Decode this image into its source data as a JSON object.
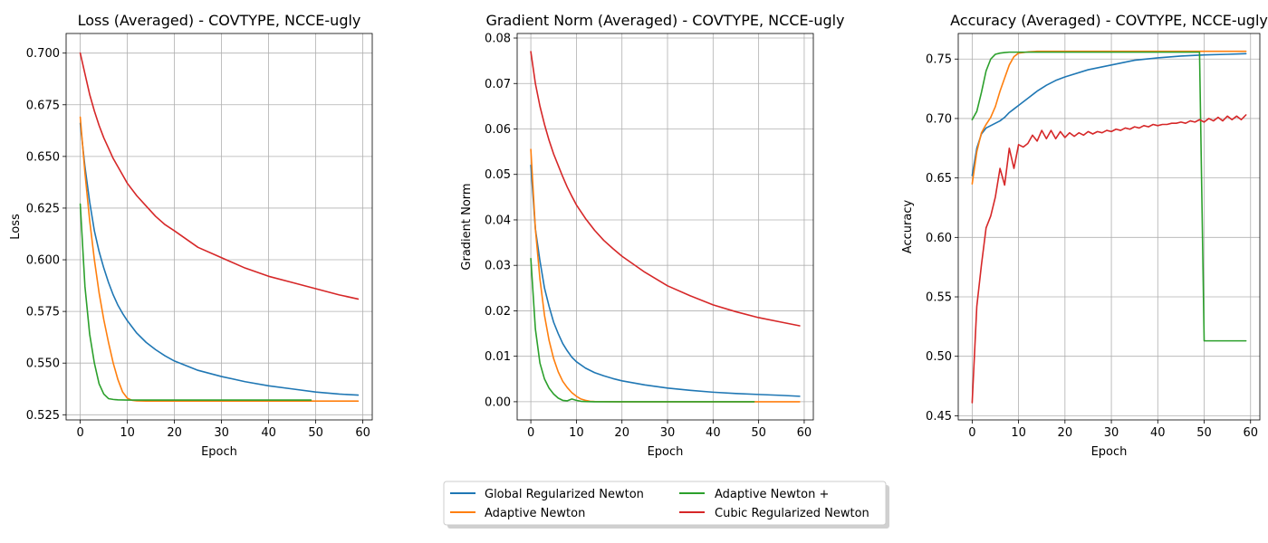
{
  "legend": {
    "placement": "bottom-center",
    "entries": [
      {
        "label": "Global Regularized Newton",
        "color": "#1f77b4"
      },
      {
        "label": "Adaptive Newton",
        "color": "#ff7f0e"
      },
      {
        "label": "Adaptive Newton +",
        "color": "#2ca02c"
      },
      {
        "label": "Cubic Regularized Newton",
        "color": "#d62728"
      }
    ]
  },
  "chart_data": [
    {
      "type": "line",
      "title": "Loss (Averaged) - COVTYPE, NCCE-ugly",
      "xlabel": "Epoch",
      "ylabel": "Loss",
      "xlim": [
        -3,
        62
      ],
      "ylim": [
        0.5225,
        0.7095
      ],
      "xticks": [
        0,
        10,
        20,
        30,
        40,
        50,
        60
      ],
      "yticks": [
        0.525,
        0.55,
        0.575,
        0.6,
        0.625,
        0.65,
        0.675,
        0.7
      ],
      "ytick_labels": [
        "0.525",
        "0.550",
        "0.575",
        "0.600",
        "0.625",
        "0.650",
        "0.675",
        "0.700"
      ],
      "grid": true,
      "series": [
        {
          "name": "Global Regularized Newton",
          "color": "#1f77b4",
          "x": [
            0,
            1,
            2,
            3,
            4,
            5,
            6,
            7,
            8,
            9,
            10,
            12,
            14,
            16,
            18,
            20,
            25,
            30,
            35,
            40,
            45,
            50,
            55,
            59
          ],
          "y": [
            0.666,
            0.645,
            0.628,
            0.614,
            0.604,
            0.596,
            0.589,
            0.583,
            0.578,
            0.574,
            0.5705,
            0.5645,
            0.56,
            0.5565,
            0.5535,
            0.551,
            0.5465,
            0.5435,
            0.541,
            0.539,
            0.5375,
            0.536,
            0.535,
            0.5345
          ]
        },
        {
          "name": "Adaptive Newton",
          "color": "#ff7f0e",
          "x": [
            0,
            1,
            2,
            3,
            4,
            5,
            6,
            7,
            8,
            9,
            10,
            11,
            12,
            14,
            20,
            30,
            40,
            50,
            59
          ],
          "y": [
            0.669,
            0.642,
            0.619,
            0.6,
            0.584,
            0.571,
            0.56,
            0.55,
            0.542,
            0.536,
            0.533,
            0.532,
            0.5317,
            0.5316,
            0.5316,
            0.5316,
            0.5316,
            0.5316,
            0.5316
          ]
        },
        {
          "name": "Adaptive Newton +",
          "color": "#2ca02c",
          "x": [
            0,
            1,
            2,
            3,
            4,
            5,
            6,
            7,
            8,
            10,
            15,
            20,
            30,
            40,
            49
          ],
          "y": [
            0.627,
            0.587,
            0.564,
            0.55,
            0.54,
            0.535,
            0.5328,
            0.5324,
            0.5322,
            0.5321,
            0.5321,
            0.5321,
            0.5321,
            0.5321,
            0.5321
          ]
        },
        {
          "name": "Cubic Regularized Newton",
          "color": "#d62728",
          "x": [
            0,
            1,
            2,
            3,
            4,
            5,
            6,
            7,
            8,
            9,
            10,
            12,
            14,
            16,
            18,
            20,
            25,
            30,
            35,
            40,
            45,
            50,
            55,
            59
          ],
          "y": [
            0.7,
            0.69,
            0.68,
            0.672,
            0.665,
            0.659,
            0.654,
            0.649,
            0.645,
            0.641,
            0.637,
            0.631,
            0.626,
            0.621,
            0.617,
            0.614,
            0.606,
            0.601,
            0.596,
            0.592,
            0.589,
            0.586,
            0.583,
            0.581
          ]
        }
      ]
    },
    {
      "type": "line",
      "title": "Gradient Norm (Averaged) - COVTYPE, NCCE-ugly",
      "xlabel": "Epoch",
      "ylabel": "Gradient Norm",
      "xlim": [
        -3,
        62
      ],
      "ylim": [
        -0.004,
        0.081
      ],
      "xticks": [
        0,
        10,
        20,
        30,
        40,
        50,
        60
      ],
      "yticks": [
        0,
        0.01,
        0.02,
        0.03,
        0.04,
        0.05,
        0.06,
        0.07,
        0.08
      ],
      "ytick_labels": [
        "0.00",
        "0.01",
        "0.02",
        "0.03",
        "0.04",
        "0.05",
        "0.06",
        "0.07",
        "0.08"
      ],
      "grid": true,
      "series": [
        {
          "name": "Global Regularized Newton",
          "color": "#1f77b4",
          "x": [
            0,
            1,
            2,
            3,
            4,
            5,
            6,
            7,
            8,
            9,
            10,
            12,
            14,
            16,
            18,
            20,
            25,
            30,
            35,
            40,
            45,
            50,
            55,
            59
          ],
          "y": [
            0.052,
            0.038,
            0.031,
            0.025,
            0.021,
            0.0175,
            0.015,
            0.0128,
            0.0112,
            0.0098,
            0.0088,
            0.0074,
            0.0064,
            0.0057,
            0.0051,
            0.0046,
            0.0037,
            0.003,
            0.0025,
            0.0021,
            0.0018,
            0.0016,
            0.0014,
            0.0012
          ]
        },
        {
          "name": "Adaptive Newton",
          "color": "#ff7f0e",
          "x": [
            0,
            1,
            2,
            3,
            4,
            5,
            6,
            7,
            8,
            9,
            10,
            11,
            12,
            13,
            14,
            20,
            30,
            40,
            50,
            59
          ],
          "y": [
            0.0555,
            0.038,
            0.027,
            0.019,
            0.0135,
            0.0095,
            0.0066,
            0.0045,
            0.0031,
            0.002,
            0.0012,
            0.0006,
            0.0003,
            0.0001,
            5e-05,
            0,
            0,
            0,
            0,
            0
          ]
        },
        {
          "name": "Adaptive Newton +",
          "color": "#2ca02c",
          "x": [
            0,
            1,
            2,
            3,
            4,
            5,
            6,
            7,
            8,
            9,
            10,
            11,
            12,
            14,
            20,
            30,
            40,
            49
          ],
          "y": [
            0.0315,
            0.016,
            0.0085,
            0.005,
            0.003,
            0.0017,
            0.0008,
            0.0003,
            0.0002,
            0.0006,
            0.0003,
            0.0001,
            5e-05,
            0,
            0,
            0,
            0,
            0
          ]
        },
        {
          "name": "Cubic Regularized Newton",
          "color": "#d62728",
          "x": [
            0,
            1,
            2,
            3,
            4,
            5,
            6,
            7,
            8,
            9,
            10,
            12,
            14,
            16,
            18,
            20,
            25,
            30,
            35,
            40,
            45,
            50,
            55,
            59
          ],
          "y": [
            0.077,
            0.07,
            0.065,
            0.061,
            0.0575,
            0.0545,
            0.052,
            0.0495,
            0.0472,
            0.0452,
            0.0433,
            0.0403,
            0.0377,
            0.0355,
            0.0337,
            0.032,
            0.0285,
            0.0255,
            0.0233,
            0.0213,
            0.0198,
            0.0185,
            0.0175,
            0.0167
          ]
        }
      ]
    },
    {
      "type": "line",
      "title": "Accuracy (Averaged) - COVTYPE, NCCE-ugly",
      "xlabel": "Epoch",
      "ylabel": "Accuracy",
      "xlim": [
        -3,
        62
      ],
      "ylim": [
        0.4465,
        0.7715
      ],
      "xticks": [
        0,
        10,
        20,
        30,
        40,
        50,
        60
      ],
      "yticks": [
        0.45,
        0.5,
        0.55,
        0.6,
        0.65,
        0.7,
        0.75
      ],
      "ytick_labels": [
        "0.45",
        "0.50",
        "0.55",
        "0.60",
        "0.65",
        "0.70",
        "0.75"
      ],
      "grid": true,
      "series": [
        {
          "name": "Global Regularized Newton",
          "color": "#1f77b4",
          "x": [
            0,
            1,
            2,
            3,
            4,
            5,
            6,
            7,
            8,
            9,
            10,
            12,
            14,
            16,
            18,
            20,
            25,
            30,
            35,
            40,
            45,
            50,
            55,
            59
          ],
          "y": [
            0.652,
            0.675,
            0.687,
            0.692,
            0.694,
            0.696,
            0.698,
            0.701,
            0.705,
            0.708,
            0.711,
            0.717,
            0.723,
            0.728,
            0.732,
            0.735,
            0.741,
            0.745,
            0.749,
            0.751,
            0.7525,
            0.7535,
            0.754,
            0.7545
          ]
        },
        {
          "name": "Adaptive Newton",
          "color": "#ff7f0e",
          "x": [
            0,
            1,
            2,
            3,
            4,
            5,
            6,
            7,
            8,
            9,
            10,
            11,
            12,
            14,
            20,
            30,
            40,
            50,
            59
          ],
          "y": [
            0.645,
            0.672,
            0.688,
            0.695,
            0.701,
            0.71,
            0.723,
            0.734,
            0.745,
            0.752,
            0.755,
            0.7555,
            0.756,
            0.7565,
            0.7565,
            0.7565,
            0.7565,
            0.7565,
            0.7565
          ]
        },
        {
          "name": "Adaptive Newton +",
          "color": "#2ca02c",
          "x": [
            0,
            1,
            2,
            3,
            4,
            5,
            6,
            7,
            8,
            10,
            15,
            20,
            30,
            40,
            49,
            50,
            51,
            55,
            59
          ],
          "y": [
            0.699,
            0.706,
            0.722,
            0.74,
            0.75,
            0.754,
            0.755,
            0.7555,
            0.7558,
            0.7558,
            0.7558,
            0.7558,
            0.7558,
            0.7558,
            0.7558,
            0.513,
            0.513,
            0.513,
            0.513
          ]
        },
        {
          "name": "Cubic Regularized Newton",
          "color": "#d62728",
          "x": [
            0,
            1,
            2,
            3,
            4,
            5,
            6,
            7,
            8,
            9,
            10,
            11,
            12,
            13,
            14,
            15,
            16,
            17,
            18,
            19,
            20,
            21,
            22,
            23,
            24,
            25,
            26,
            27,
            28,
            29,
            30,
            31,
            32,
            33,
            34,
            35,
            36,
            37,
            38,
            39,
            40,
            41,
            42,
            43,
            44,
            45,
            46,
            47,
            48,
            49,
            50,
            51,
            52,
            53,
            54,
            55,
            56,
            57,
            58,
            59
          ],
          "y": [
            0.461,
            0.542,
            0.577,
            0.608,
            0.618,
            0.634,
            0.658,
            0.644,
            0.675,
            0.658,
            0.678,
            0.676,
            0.679,
            0.686,
            0.681,
            0.69,
            0.683,
            0.69,
            0.683,
            0.689,
            0.684,
            0.688,
            0.685,
            0.688,
            0.686,
            0.689,
            0.687,
            0.689,
            0.688,
            0.69,
            0.689,
            0.691,
            0.69,
            0.692,
            0.691,
            0.693,
            0.692,
            0.694,
            0.693,
            0.695,
            0.694,
            0.695,
            0.695,
            0.696,
            0.696,
            0.697,
            0.696,
            0.698,
            0.697,
            0.699,
            0.697,
            0.7,
            0.698,
            0.701,
            0.698,
            0.702,
            0.699,
            0.702,
            0.699,
            0.703
          ]
        }
      ]
    }
  ]
}
